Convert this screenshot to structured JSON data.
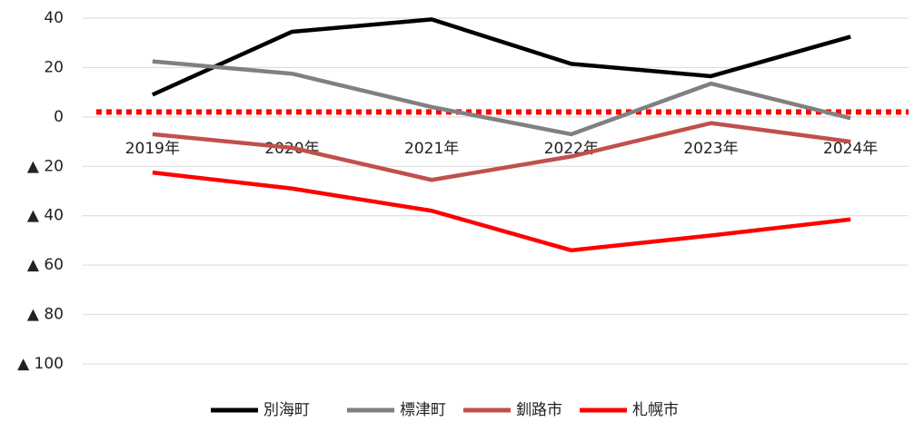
{
  "chart_data": {
    "type": "line",
    "categories": [
      "2019年",
      "2020年",
      "2021年",
      "2022年",
      "2023年",
      "2024年"
    ],
    "series": [
      {
        "name": "別海町",
        "color": "#000000",
        "values": [
          9,
          34.5,
          39.5,
          21.5,
          16.5,
          32.5
        ]
      },
      {
        "name": "標津町",
        "color": "#808080",
        "values": [
          22.5,
          17.5,
          4,
          -7,
          13.5,
          -0.5
        ]
      },
      {
        "name": "釧路市",
        "color": "#c0504d",
        "values": [
          -7,
          -12.5,
          -25.5,
          -16,
          -2.5,
          -10
        ]
      },
      {
        "name": "札幌市",
        "color": "#ff0000",
        "values": [
          -22.5,
          -29,
          -38,
          -54,
          -48,
          -41.5
        ]
      }
    ],
    "ylim": [
      -100,
      40
    ],
    "yticks": [
      40,
      20,
      0,
      {
        "value": -20,
        "label": "▲ 20"
      },
      {
        "value": -40,
        "label": "▲ 40"
      },
      {
        "value": -60,
        "label": "▲ 60"
      },
      {
        "value": -80,
        "label": "▲ 80"
      },
      {
        "value": -100,
        "label": "▲ 100"
      }
    ],
    "grid": true,
    "reference_line": {
      "value": 2,
      "color": "#ff0000"
    },
    "legend": "bottom"
  }
}
